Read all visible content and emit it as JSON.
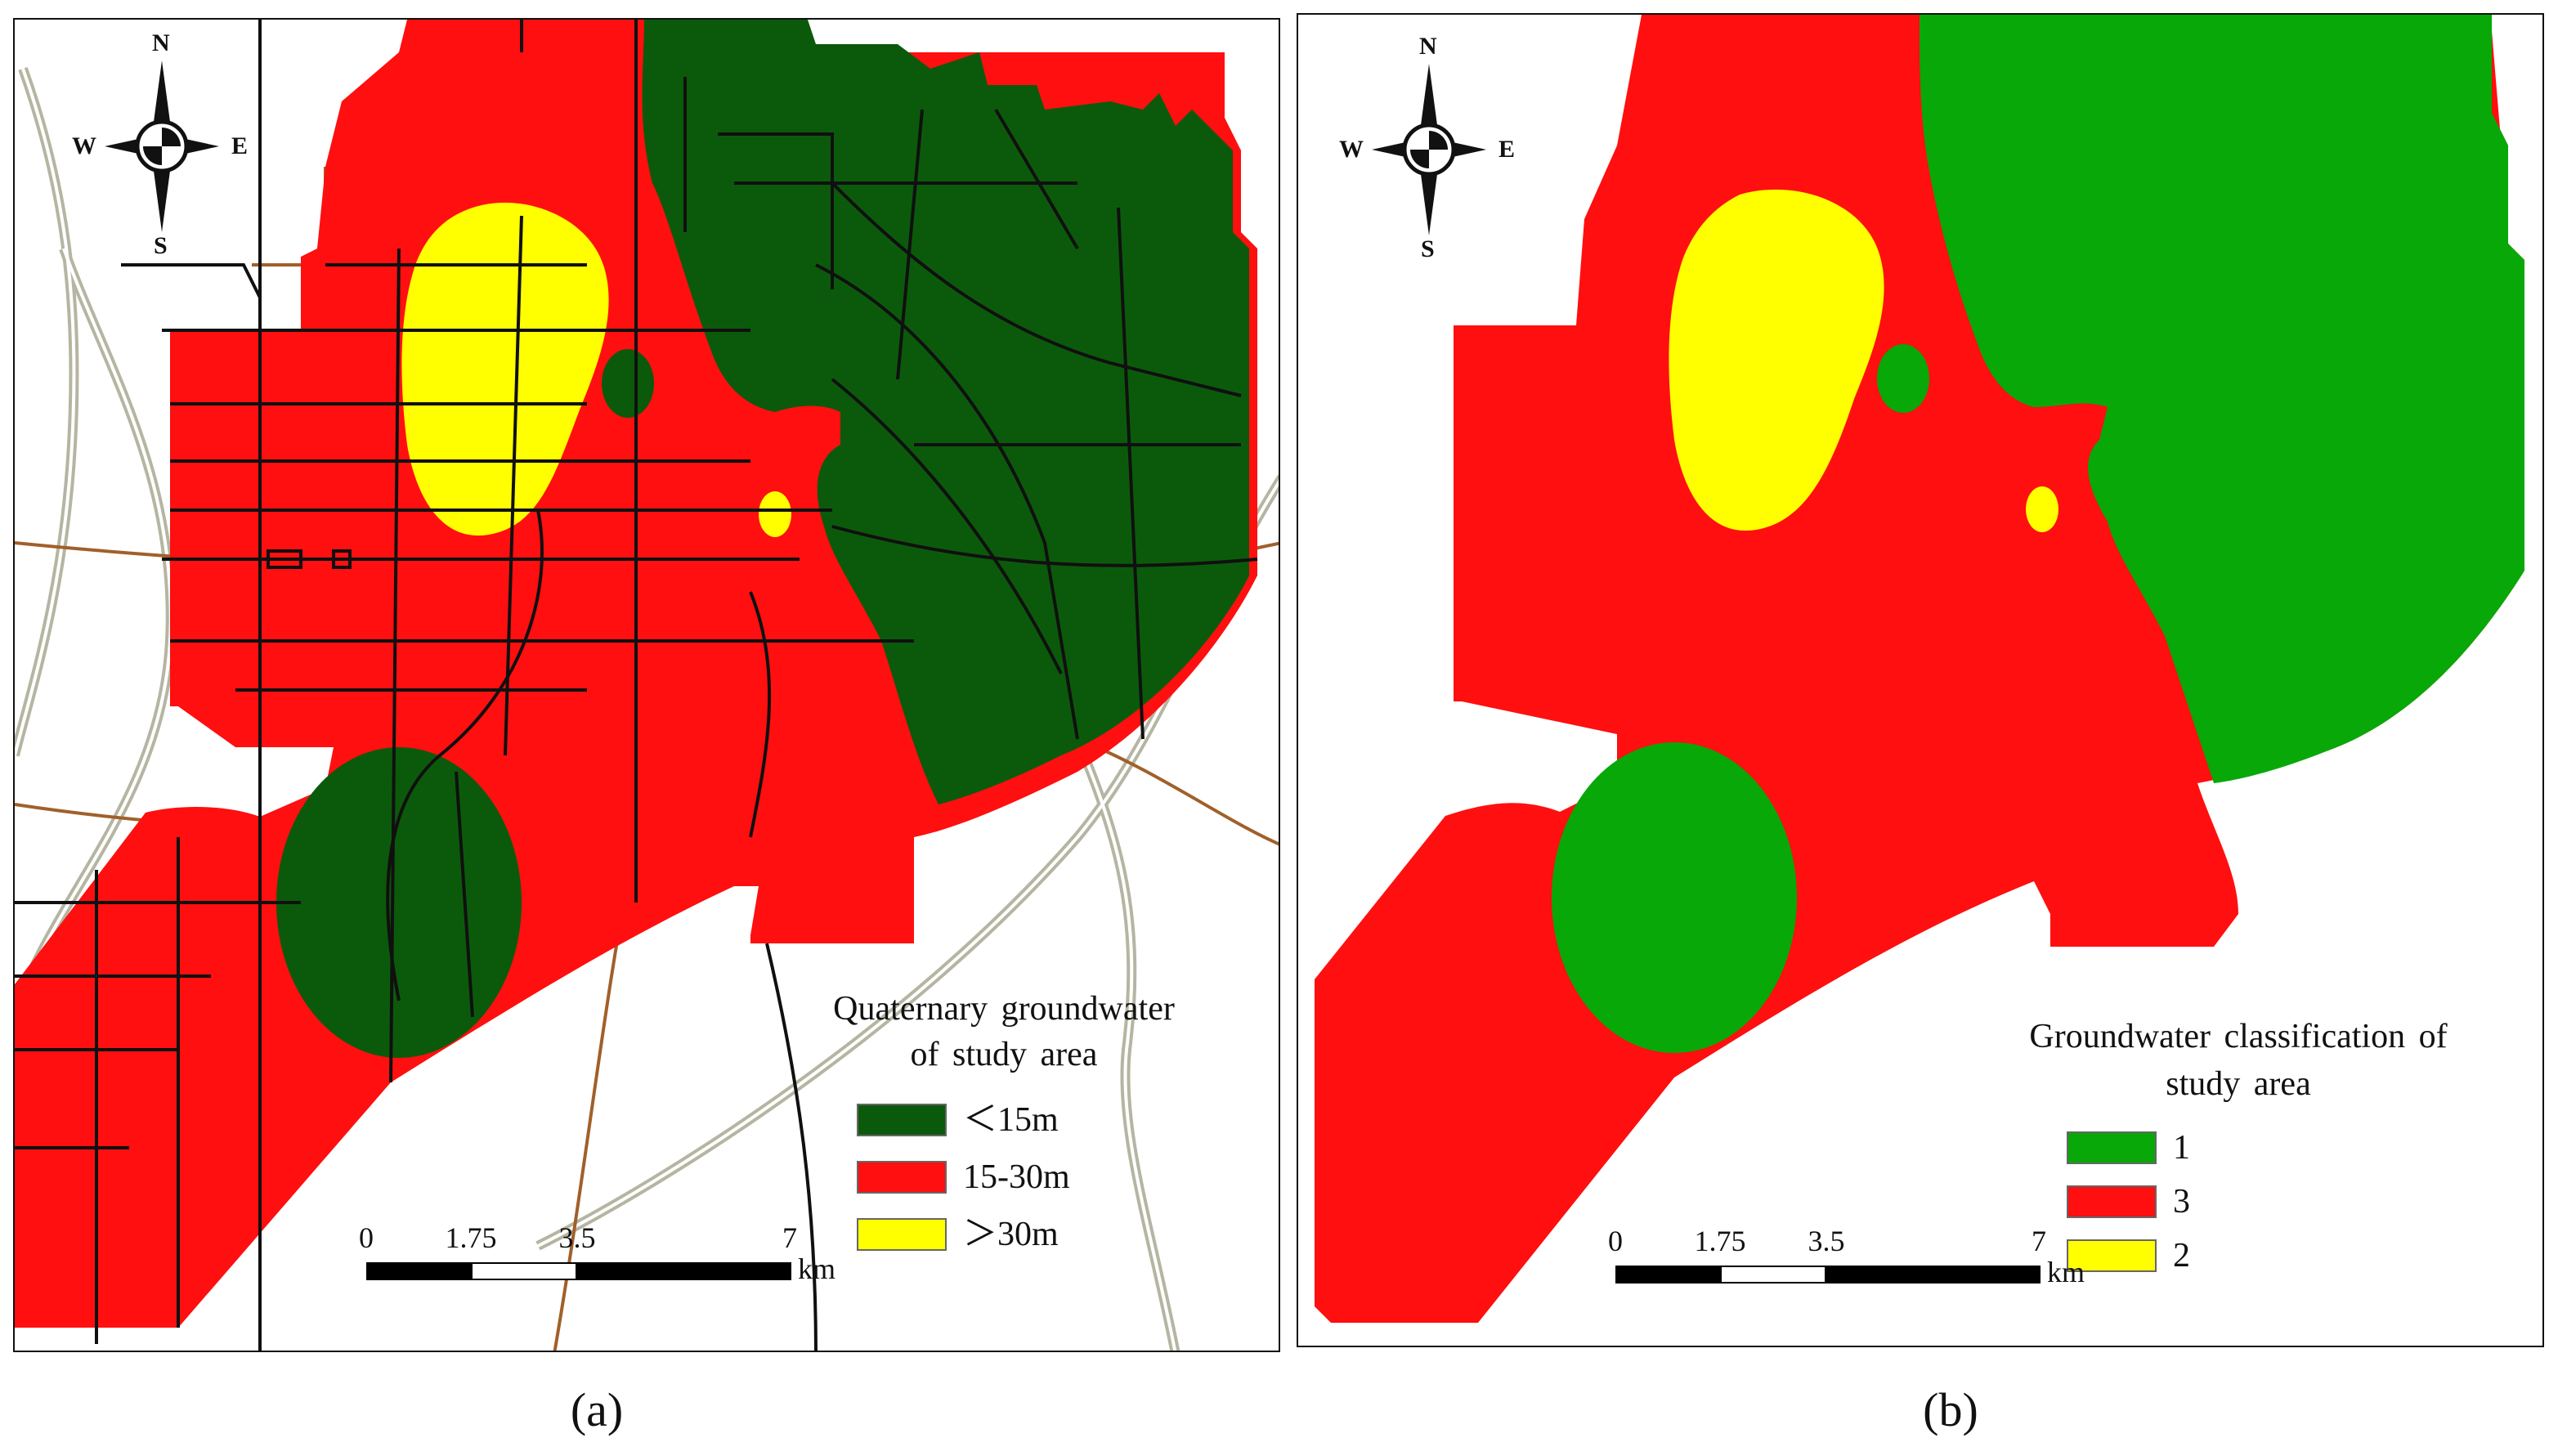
{
  "colors": {
    "dark_green": "#0b5a0b",
    "bright_green": "#07a807",
    "red": "#ff0f0f",
    "yellow": "#ffff00",
    "road": "#101010",
    "highway": "#b5b5a2",
    "brown_road": "#a0602a"
  },
  "compass": {
    "n": "N",
    "s": "S",
    "e": "E",
    "w": "W",
    "icon": "north-arrow-icon"
  },
  "panel_a": {
    "legend": {
      "title_line1": "Quaternary groundwater",
      "title_line2": "of study area",
      "items": [
        {
          "label": "＜15m",
          "color": "#0b5a0b"
        },
        {
          "label": "15-30m",
          "color": "#ff0f0f"
        },
        {
          "label": "＞30m",
          "color": "#ffff00"
        }
      ]
    },
    "scalebar": {
      "ticks": [
        "0",
        "1.75",
        "3.5",
        "7"
      ],
      "units": "km"
    },
    "caption": "(a)"
  },
  "panel_b": {
    "legend": {
      "title_line1": "Groundwater classification of",
      "title_line2": "study area",
      "items": [
        {
          "label": "1",
          "color": "#07a807"
        },
        {
          "label": "3",
          "color": "#ff0f0f"
        },
        {
          "label": "2",
          "color": "#ffff00"
        }
      ]
    },
    "scalebar": {
      "ticks": [
        "0",
        "1.75",
        "3.5",
        "7"
      ],
      "units": "km"
    },
    "caption": "(b)"
  }
}
